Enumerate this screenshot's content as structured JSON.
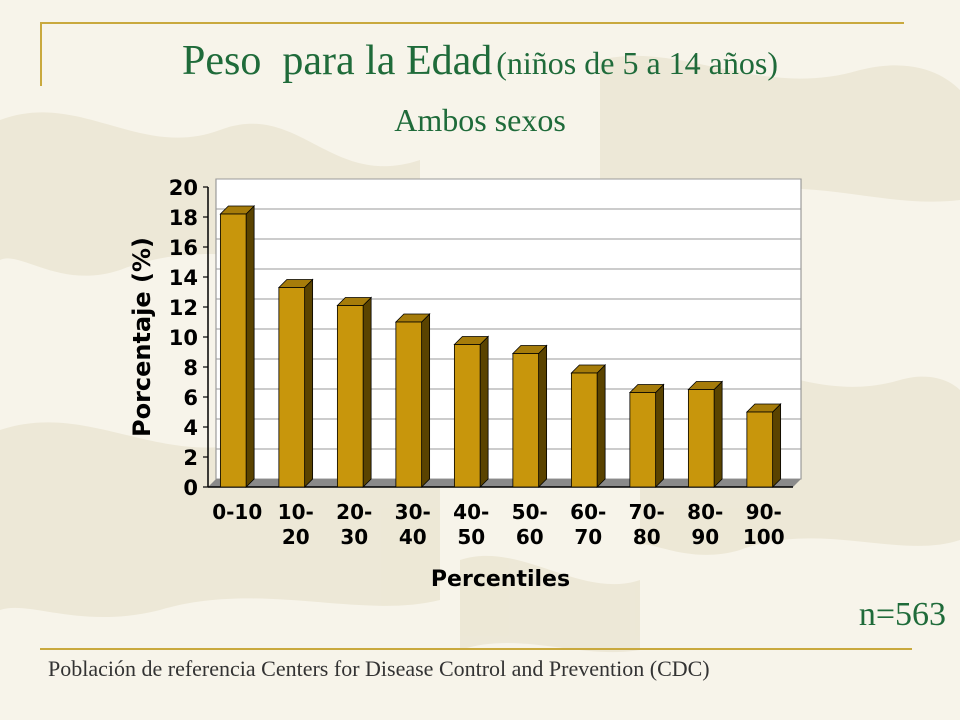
{
  "slide": {
    "title_main": "Peso  para la Edad",
    "title_paren": "(niños de 5 a 14 años)",
    "subtitle": "Ambos sexos",
    "n_label": "n=563",
    "footer": "Población de referencia Centers for Disease Control and Prevention (CDC)"
  },
  "colors": {
    "title": "#1f6b3a",
    "bar_front": "#c8960c",
    "bar_top": "#a67c0a",
    "bar_side": "#5a4300",
    "accent_rule": "#c9a93e"
  },
  "chart_data": {
    "type": "bar",
    "categories": [
      "0-10",
      "10-20",
      "20-30",
      "30-40",
      "40-50",
      "50-60",
      "60-70",
      "70-80",
      "80-90",
      "90-100"
    ],
    "category_lines": [
      [
        "0-10"
      ],
      [
        "10-",
        "20"
      ],
      [
        "20-",
        "30"
      ],
      [
        "30-",
        "40"
      ],
      [
        "40-",
        "50"
      ],
      [
        "50-",
        "60"
      ],
      [
        "60-",
        "70"
      ],
      [
        "70-",
        "80"
      ],
      [
        "80-",
        "90"
      ],
      [
        "90-",
        "100"
      ]
    ],
    "values": [
      18.2,
      13.3,
      12.1,
      11.0,
      9.5,
      8.9,
      7.6,
      6.3,
      6.5,
      5.0
    ],
    "xlabel": "Percentiles",
    "ylabel": "Porcentaje (%)",
    "ylim": [
      0,
      20
    ],
    "yticks": [
      0,
      2,
      4,
      6,
      8,
      10,
      12,
      14,
      16,
      18,
      20
    ],
    "grid": true,
    "legend": "none"
  }
}
